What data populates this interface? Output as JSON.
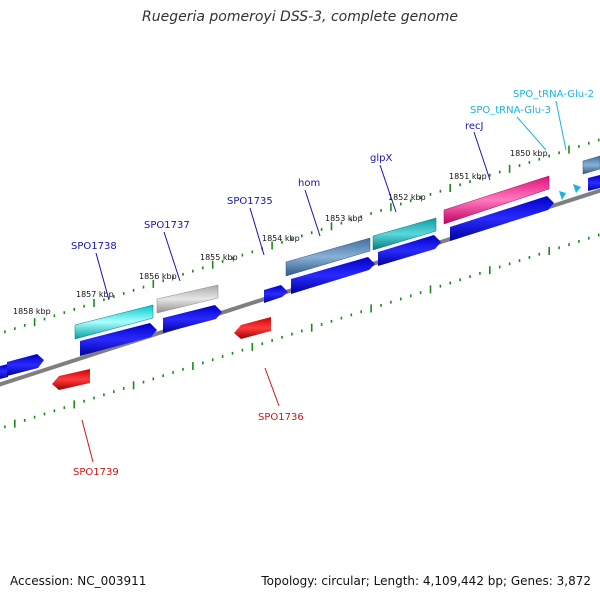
{
  "title": "Ruegeria pomeroyi DSS-3, complete genome",
  "footer": {
    "accession": "Accession: NC_003911",
    "summary": "Topology: circular; Length: 4,109,442 bp; Genes: 3,872"
  },
  "colors": {
    "backbone": "#7f7f7f",
    "tick": "#1a8a1a",
    "forward_gene": "#0000e6",
    "reverse_gene": "#e60000",
    "label_forward": "#1414b4",
    "label_reverse": "#d21414",
    "label_trna": "#19b4dc"
  },
  "kbp_labels": [
    "1858 kbp",
    "1857 kbp",
    "1856 kbp",
    "1855 kbp",
    "1854 kbp",
    "1853 kbp",
    "1852 kbp",
    "1851 kbp",
    "1850 kbp"
  ],
  "gene_labels": [
    {
      "name": "SPO1738",
      "strand": "forward"
    },
    {
      "name": "SPO1737",
      "strand": "forward"
    },
    {
      "name": "SPO1735",
      "strand": "forward"
    },
    {
      "name": "hom",
      "strand": "forward"
    },
    {
      "name": "glpX",
      "strand": "forward"
    },
    {
      "name": "recJ",
      "strand": "forward"
    },
    {
      "name": "SPO_tRNA-Glu-3",
      "strand": "trna"
    },
    {
      "name": "SPO_tRNA-Glu-2",
      "strand": "trna"
    },
    {
      "name": "SPO1736",
      "strand": "reverse"
    },
    {
      "name": "SPO1739",
      "strand": "reverse"
    }
  ]
}
